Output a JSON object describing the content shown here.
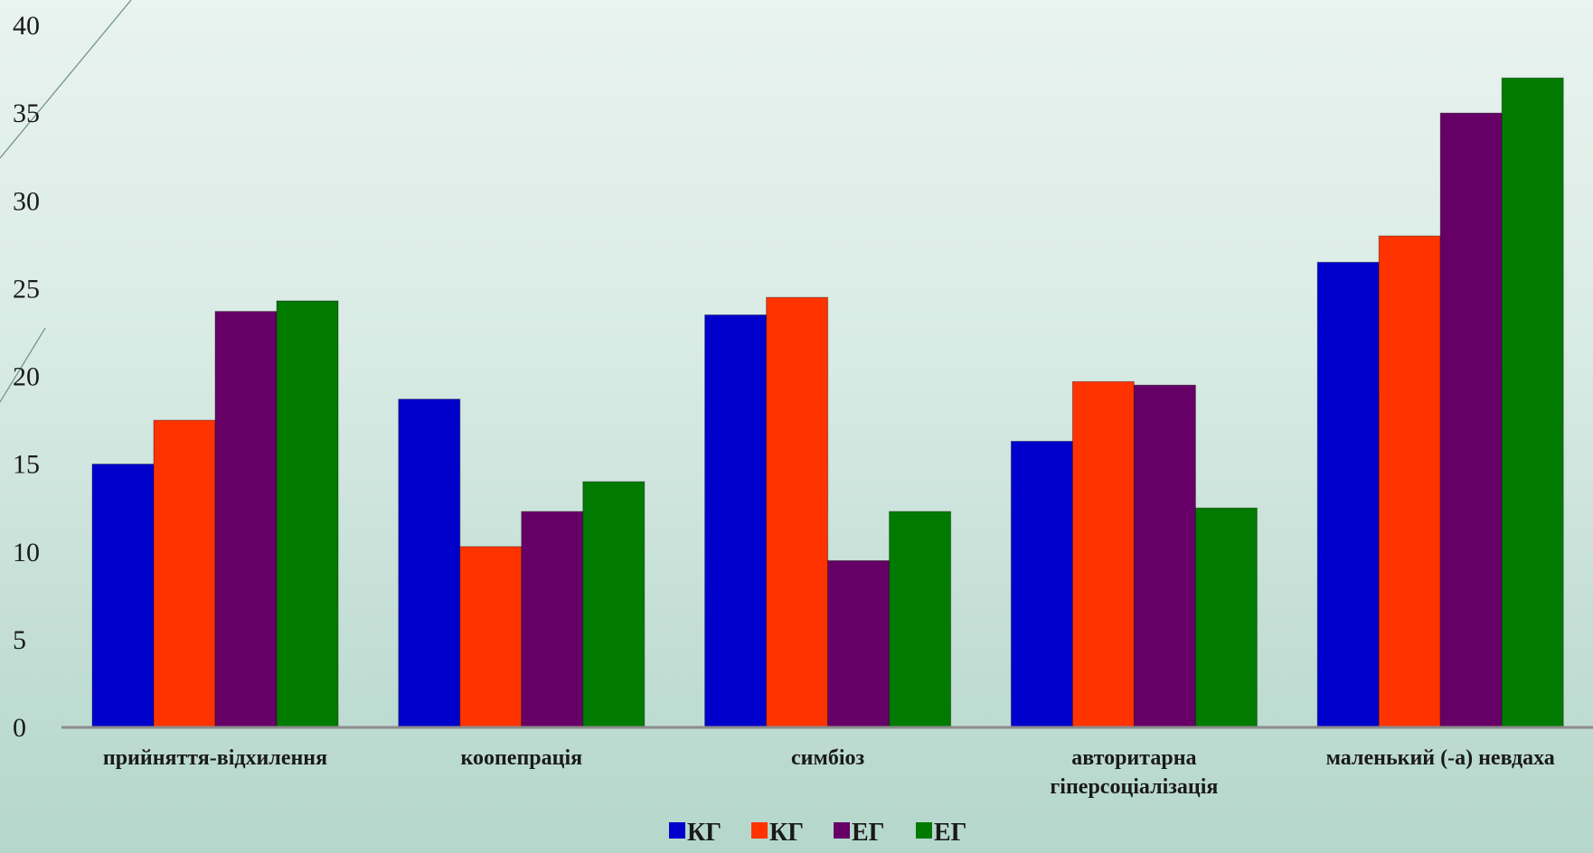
{
  "chart_data": {
    "type": "bar",
    "categories": [
      [
        "прийняття-відхилення"
      ],
      [
        "коопепрація"
      ],
      [
        "симбіоз"
      ],
      [
        "авторитарна",
        "гіперсоціалізація"
      ],
      [
        "маленький (-а) невдаха"
      ]
    ],
    "series": [
      {
        "name": "КГ",
        "color": "#0000cc",
        "values": [
          15,
          18.7,
          23.5,
          16.3,
          26.5
        ]
      },
      {
        "name": "КГ",
        "color": "#ff3300",
        "values": [
          17.5,
          10.3,
          24.5,
          19.7,
          28
        ]
      },
      {
        "name": "ЕГ",
        "color": "#660066",
        "values": [
          23.7,
          12.3,
          9.5,
          19.5,
          35
        ]
      },
      {
        "name": "ЕГ",
        "color": "#007a00",
        "values": [
          24.3,
          14,
          12.3,
          12.5,
          37
        ]
      }
    ],
    "ylim": [
      0,
      40
    ],
    "yticks": [
      "0",
      "5",
      "10",
      "15",
      "20",
      "25",
      "30",
      "35",
      "40"
    ],
    "legend_position": "bottom-center",
    "grid": false,
    "title": "",
    "xlabel": "",
    "ylabel": ""
  }
}
